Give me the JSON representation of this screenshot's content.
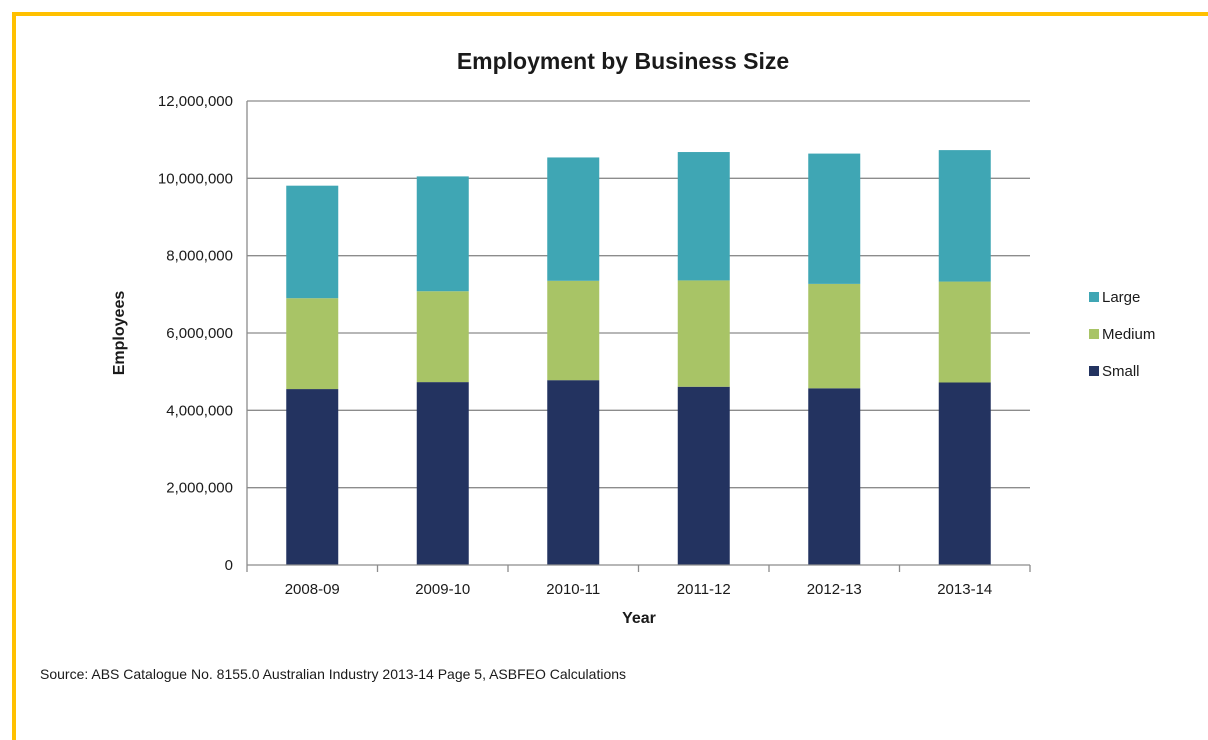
{
  "frame": {
    "border_color": "#ffc000"
  },
  "chart_data": {
    "type": "bar",
    "stacked": true,
    "title": "Employment by Business Size",
    "xlabel": "Year",
    "ylabel": "Employees",
    "categories": [
      "2008-09",
      "2009-10",
      "2010-11",
      "2011-12",
      "2012-13",
      "2013-14"
    ],
    "series": [
      {
        "name": "Small",
        "color": "#233360",
        "values": [
          4550000,
          4730000,
          4780000,
          4610000,
          4570000,
          4720000
        ]
      },
      {
        "name": "Medium",
        "color": "#a8c466",
        "values": [
          2350000,
          2350000,
          2570000,
          2750000,
          2700000,
          2610000
        ]
      },
      {
        "name": "Large",
        "color": "#3fa6b4",
        "values": [
          2910000,
          2970000,
          3190000,
          3320000,
          3370000,
          3400000
        ]
      }
    ],
    "ylim": [
      0,
      12000000
    ],
    "yticks": [
      0,
      2000000,
      4000000,
      6000000,
      8000000,
      10000000,
      12000000
    ],
    "ytick_labels": [
      "0",
      "2,000,000",
      "4,000,000",
      "6,000,000",
      "8,000,000",
      "10,000,000",
      "12,000,000"
    ],
    "legend_position": "right",
    "legend_order": [
      "Large",
      "Medium",
      "Small"
    ],
    "grid": "horizontal",
    "gridline_color": "#8c8c8c"
  },
  "source_note": "Source: ABS Catalogue No. 8155.0 Australian Industry 2013-14 Page 5, ASBFEO Calculations"
}
